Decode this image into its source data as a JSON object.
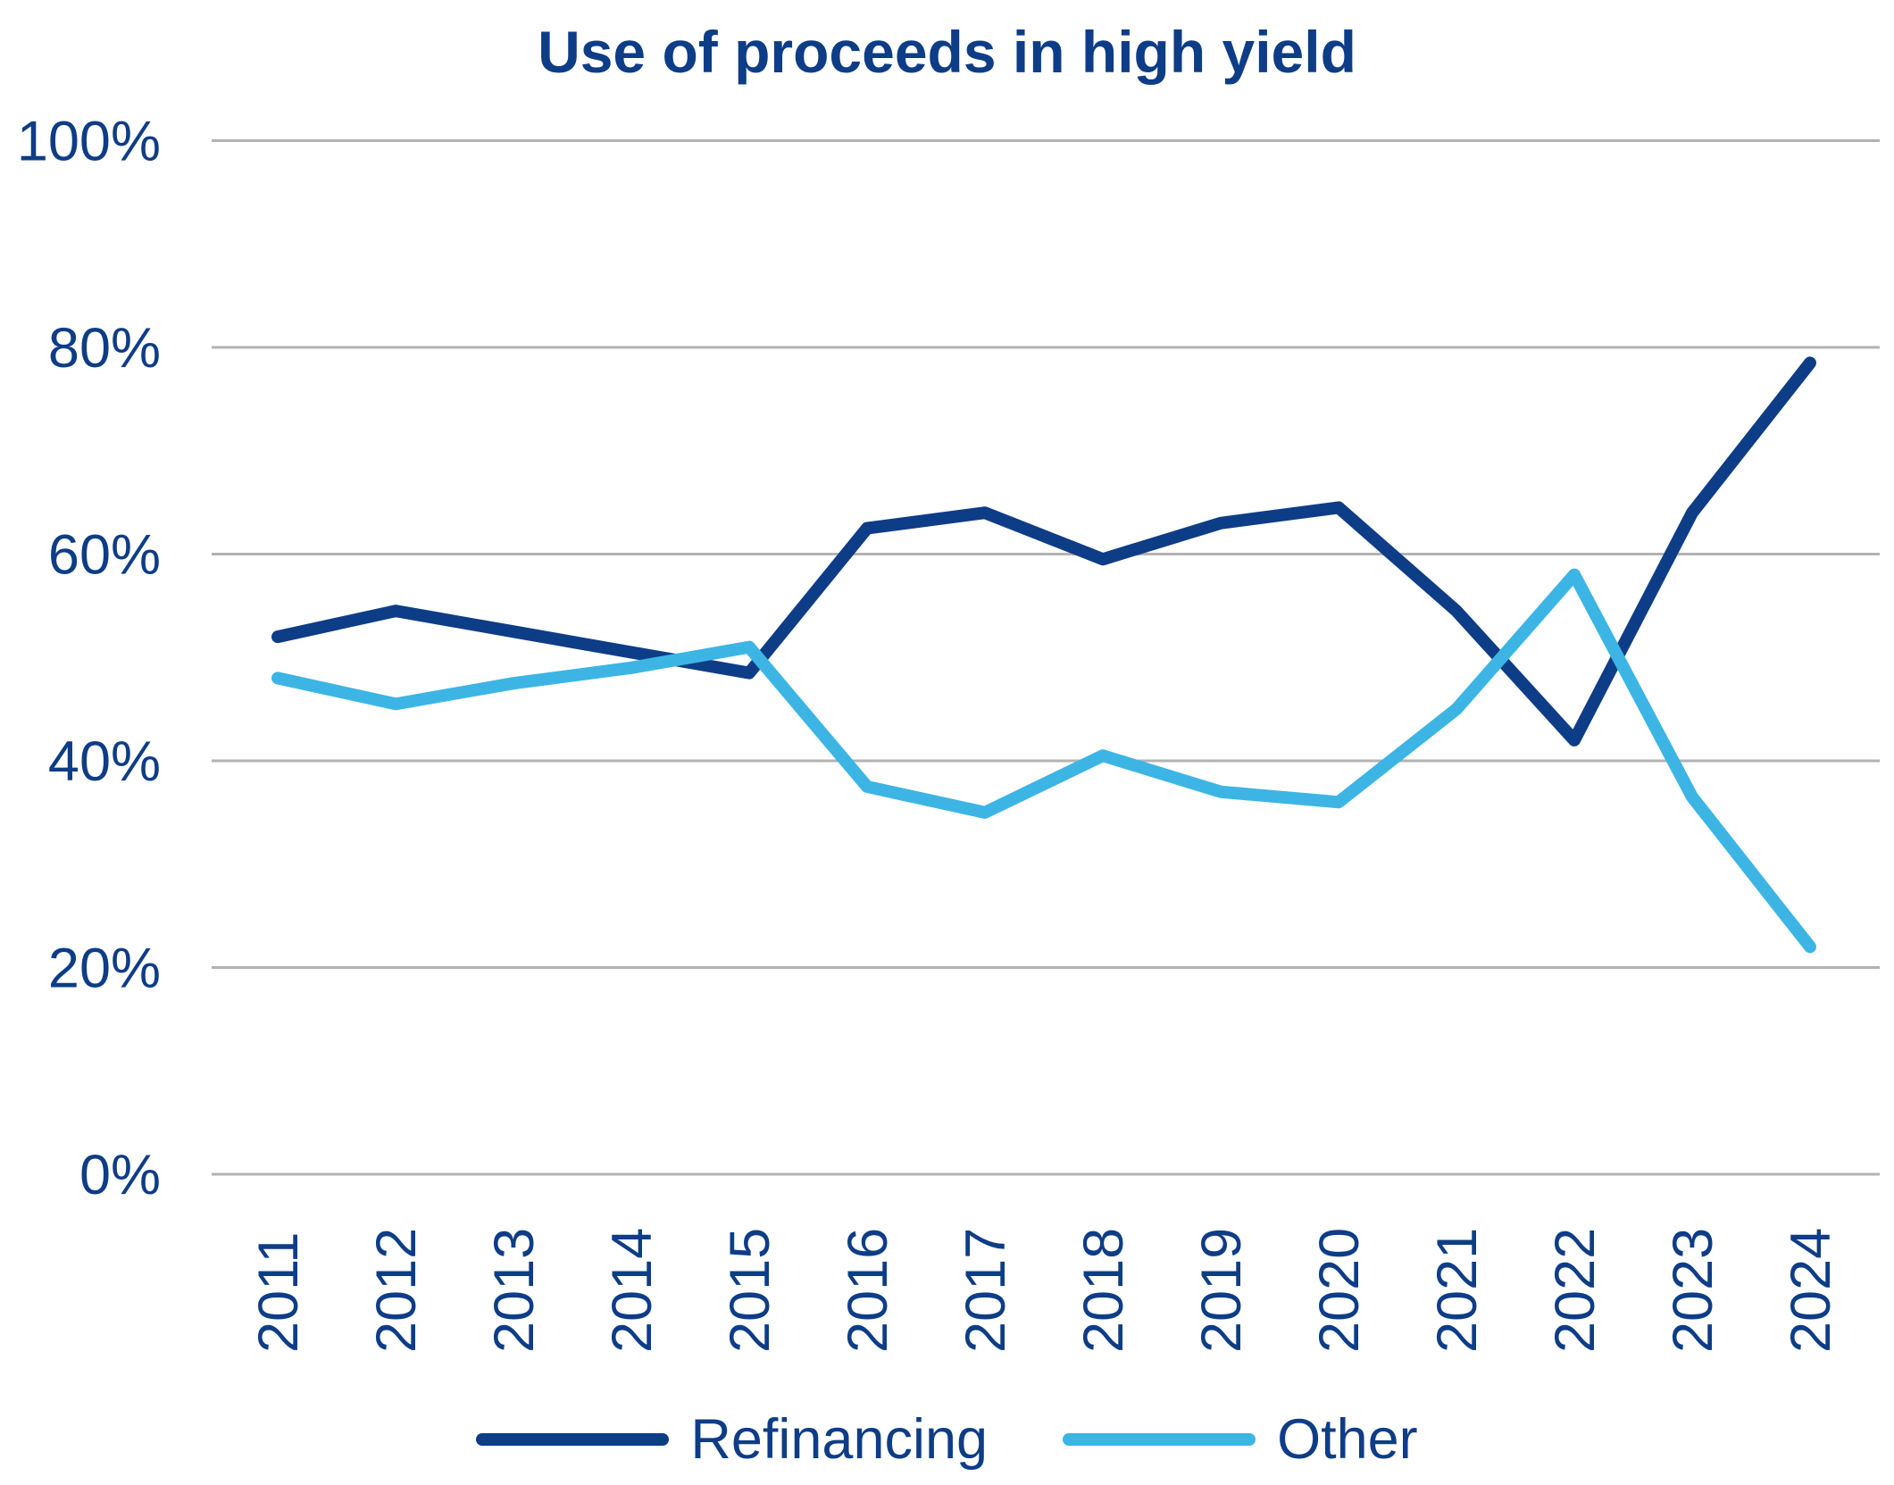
{
  "chart": {
    "title": "Use of proceeds in high yield"
  },
  "theme": {
    "navy": "#0e3d87",
    "light_blue": "#3cb5e5",
    "gridline_gray": "#b3b3b3"
  },
  "chart_data": {
    "type": "line",
    "title": "Use of proceeds in high yield",
    "xlabel": "",
    "ylabel": "",
    "categories": [
      "2011",
      "2012",
      "2013",
      "2014",
      "2015",
      "2016",
      "2017",
      "2018",
      "2019",
      "2020",
      "2021",
      "2022",
      "2023",
      "2024"
    ],
    "series": [
      {
        "name": "Refinancing",
        "color": "#0e3d87",
        "values": [
          52,
          54.5,
          52.5,
          50.5,
          48.5,
          62.5,
          64,
          59.5,
          63,
          64.5,
          54.5,
          42,
          64,
          78.5
        ]
      },
      {
        "name": "Other",
        "color": "#3cb5e5",
        "values": [
          48,
          45.5,
          47.5,
          49,
          51,
          37.5,
          35,
          40.5,
          37,
          36,
          45,
          58,
          36.5,
          22
        ]
      }
    ],
    "ylim": [
      0,
      100
    ],
    "ytick_values": [
      0,
      20,
      40,
      60,
      80,
      100
    ],
    "ytick_suffix": "%",
    "grid": true,
    "legend_position": "bottom",
    "x_label_rotation_degrees": -90
  }
}
